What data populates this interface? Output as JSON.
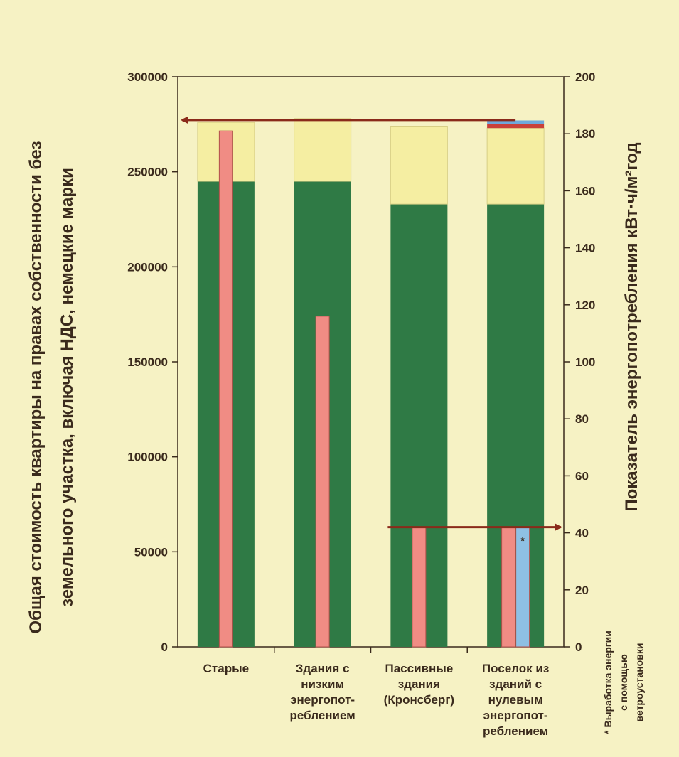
{
  "chart_data": {
    "type": "bar",
    "categories": [
      [
        "Старые"
      ],
      [
        "Здания с",
        "низким",
        "энергопот-",
        "реблением"
      ],
      [
        "Пассивные",
        "здания",
        "(Кронсберг)"
      ],
      [
        "Поселок из",
        "зданий с",
        "нулевым",
        "энергопот-",
        "реблением"
      ]
    ],
    "left_axis": {
      "label_lines": [
        "Общая стоимость квартиры на правах собственности без",
        "земельного участка, включая НДС, немецкие марки"
      ],
      "ylim": [
        0,
        300000
      ],
      "ticks": [
        "0",
        "50000",
        "100000",
        "150000",
        "200000",
        "250000",
        "300000"
      ]
    },
    "right_axis": {
      "label": "Показатель энергопотребления кВт·ч/м²год",
      "ylim": [
        0,
        200
      ],
      "ticks": [
        "0",
        "20",
        "40",
        "60",
        "80",
        "100",
        "120",
        "140",
        "160",
        "180",
        "200"
      ]
    },
    "cost_series": [
      {
        "name": "",
        "color": "#2f7a45",
        "values": [
          245000,
          245000,
          233000,
          233000
        ]
      },
      {
        "name": "",
        "color": "#f5eea2",
        "values": [
          31000,
          33000,
          41000,
          40000
        ]
      },
      {
        "name": "",
        "color": "#c9403a",
        "values": [
          0,
          0,
          0,
          2000
        ]
      },
      {
        "name": "",
        "color": "#6fa8dc",
        "values": [
          0,
          0,
          0,
          2000
        ]
      }
    ],
    "energy_series": [
      {
        "name": "",
        "color": "#f08c84",
        "values": [
          181,
          116,
          42,
          42
        ]
      },
      {
        "name": "",
        "color": "#8ec0e4",
        "values": [
          0,
          0,
          0,
          42
        ]
      }
    ],
    "star_marker": "*",
    "footnote_lines": [
      "* Выработка энергии",
      "с помощью",
      "ветроустановки"
    ]
  },
  "colors": {
    "background": "#f6f2c4",
    "axis": "#3a2a1c",
    "arrow": "#8a2a1a"
  }
}
